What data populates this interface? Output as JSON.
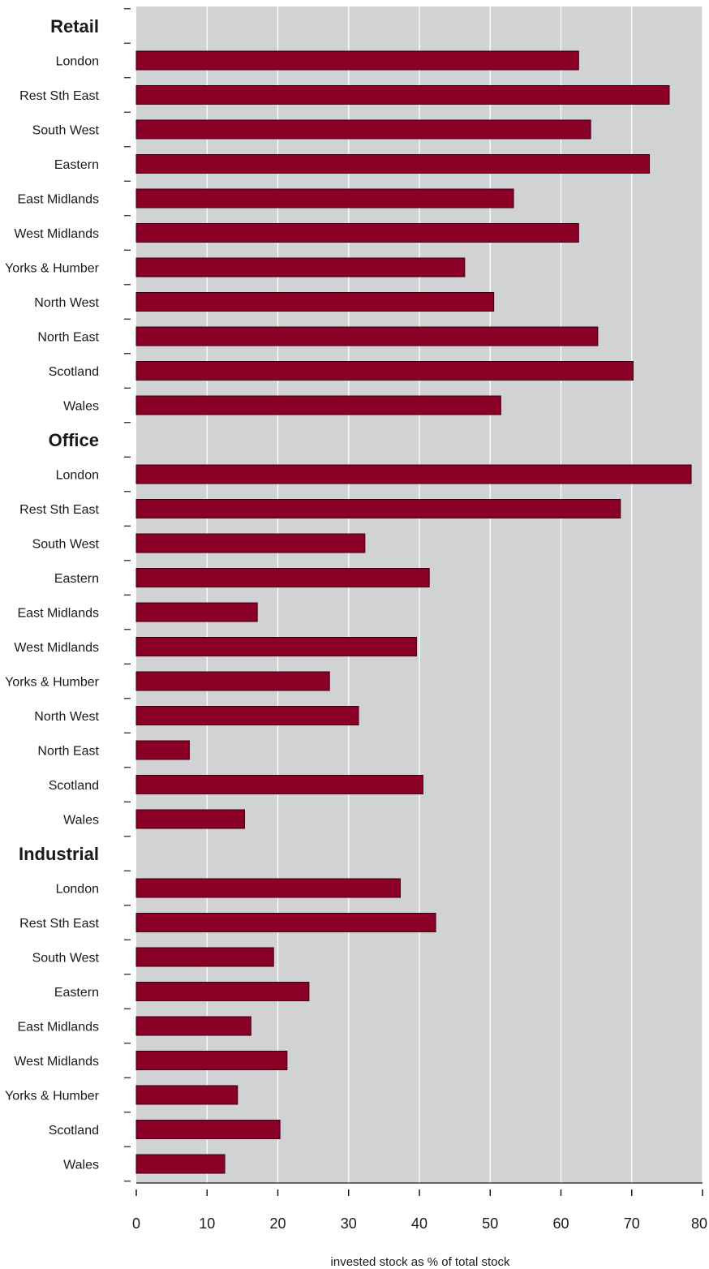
{
  "chart_data": {
    "type": "bar",
    "orientation": "horizontal",
    "xlabel": "invested stock as % of total stock",
    "xlim": [
      0,
      80
    ],
    "xticks": [
      "0",
      "10",
      "20",
      "30",
      "40",
      "50",
      "60",
      "70",
      "80"
    ],
    "grid": true,
    "colors": {
      "bar": "#8b0026",
      "bar_stroke": "#3a0010",
      "plot_bg": "#d1d2d4",
      "grid": "#ffffff"
    },
    "groups": [
      {
        "name": "Retail",
        "categories": [
          "London",
          "Rest Sth East",
          "South West",
          "Eastern",
          "East Midlands",
          "West Midlands",
          "Yorks & Humber",
          "North West",
          "North East",
          "Scotland",
          "Wales"
        ],
        "values": [
          62.5,
          75.3,
          64.2,
          72.5,
          53.3,
          62.5,
          46.4,
          50.5,
          65.2,
          70.2,
          51.5
        ]
      },
      {
        "name": "Office",
        "categories": [
          "London",
          "Rest Sth East",
          "South West",
          "Eastern",
          "East Midlands",
          "West Midlands",
          "Yorks & Humber",
          "North West",
          "North East",
          "Scotland",
          "Wales"
        ],
        "values": [
          78.4,
          68.4,
          32.3,
          41.4,
          17.1,
          39.6,
          27.3,
          31.4,
          7.5,
          40.5,
          15.3
        ]
      },
      {
        "name": "Industrial",
        "categories": [
          "London",
          "Rest Sth East",
          "South West",
          "Eastern",
          "East Midlands",
          "West Midlands",
          "Yorks & Humber",
          "Scotland",
          "Wales"
        ],
        "values": [
          37.3,
          42.3,
          19.4,
          24.4,
          16.2,
          21.3,
          14.3,
          20.3,
          12.5
        ]
      }
    ]
  }
}
